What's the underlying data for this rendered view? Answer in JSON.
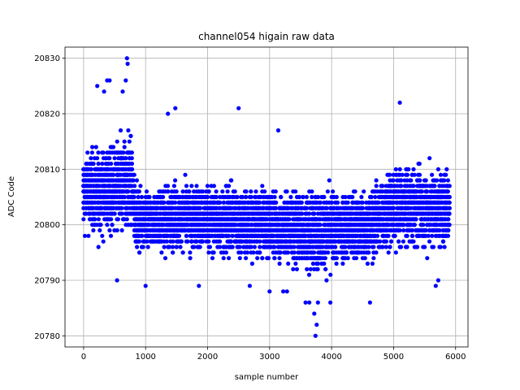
{
  "chart_data": {
    "type": "scatter",
    "title": "channel054 higain raw data",
    "xlabel": "sample number",
    "ylabel": "ADC Code",
    "xlim": [
      -300,
      6200
    ],
    "ylim": [
      20778,
      20832
    ],
    "xticks": [
      0,
      1000,
      2000,
      3000,
      4000,
      5000,
      6000
    ],
    "yticks": [
      20780,
      20790,
      20800,
      20810,
      20820,
      20830
    ],
    "grid": true,
    "marker_color": "#0000ff",
    "series": [
      {
        "sample_spacing": 20,
        "x_start": 0,
        "base_level_note": "",
        "profile": [
          {
            "x": 0,
            "center": 20806,
            "spread": 7
          },
          {
            "x": 500,
            "center": 20806,
            "spread": 8
          },
          {
            "x": 750,
            "center": 20808,
            "spread": 9
          },
          {
            "x": 850,
            "center": 20801,
            "spread": 5
          },
          {
            "x": 2000,
            "center": 20801,
            "spread": 6
          },
          {
            "x": 3000,
            "center": 20800,
            "spread": 6
          },
          {
            "x": 3700,
            "center": 20799,
            "spread": 7
          },
          {
            "x": 4600,
            "center": 20800,
            "spread": 6
          },
          {
            "x": 5000,
            "center": 20803,
            "spread": 7
          },
          {
            "x": 5900,
            "center": 20803,
            "spread": 7
          }
        ],
        "outliers": [
          [
            700,
            20830
          ],
          [
            710,
            20829
          ],
          [
            380,
            20826
          ],
          [
            420,
            20826
          ],
          [
            680,
            20826
          ],
          [
            220,
            20825
          ],
          [
            330,
            20824
          ],
          [
            630,
            20824
          ],
          [
            5100,
            20822
          ],
          [
            1480,
            20821
          ],
          [
            2500,
            20821
          ],
          [
            1360,
            20820
          ],
          [
            3140,
            20817
          ],
          [
            3740,
            20780
          ],
          [
            3760,
            20782
          ],
          [
            3720,
            20784
          ],
          [
            3580,
            20786
          ],
          [
            3640,
            20786
          ],
          [
            3780,
            20786
          ],
          [
            3980,
            20786
          ],
          [
            4620,
            20786
          ],
          [
            3000,
            20788
          ],
          [
            3220,
            20788
          ],
          [
            3280,
            20788
          ],
          [
            1000,
            20789
          ],
          [
            1860,
            20789
          ],
          [
            2680,
            20789
          ],
          [
            540,
            20790
          ],
          [
            5720,
            20790
          ],
          [
            5680,
            20789
          ]
        ]
      }
    ]
  }
}
